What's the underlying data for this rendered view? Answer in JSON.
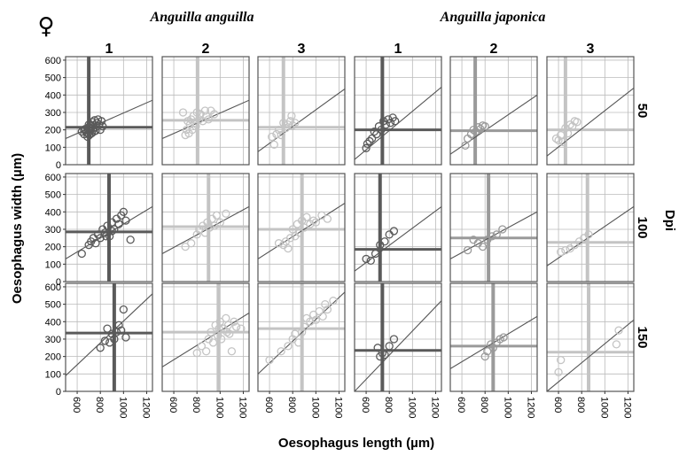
{
  "sex_symbol": "♀",
  "species": [
    "Anguilla anguilla",
    "Anguilla japonica"
  ],
  "column_headers": [
    "1",
    "2",
    "3",
    "1",
    "2",
    "3"
  ],
  "row_strip_title": "Dpi",
  "row_headers": [
    "50",
    "100",
    "150"
  ],
  "x_axis_label": "Oesophagus length (µm)",
  "y_axis_label": "Oesophagus width (µm)",
  "x_ticks": [
    "600",
    "800",
    "1000",
    "1200"
  ],
  "y_ticks": [
    "0",
    "100",
    "200",
    "300",
    "400",
    "500",
    "600"
  ],
  "colors": {
    "dark": "#5a5a5a",
    "mid": "#9a9a9a",
    "light": "#c4c4c4",
    "grid": "#bbbbbb",
    "border": "#555555"
  },
  "chart_data": {
    "type": "scatter",
    "facet_layout": "3 rows (Dpi) x 6 columns (species x group)",
    "xlim": [
      500,
      1250
    ],
    "ylim": [
      0,
      620
    ],
    "grid": true,
    "panels": [
      {
        "species": "Anguilla anguilla",
        "col": "1",
        "dpi": "50",
        "tone": "dark",
        "mean_x": 700,
        "mean_y": 215,
        "fit": {
          "y_at_500": 150,
          "y_at_1250": 370
        },
        "points": [
          [
            640,
            190
          ],
          [
            660,
            175
          ],
          [
            670,
            205
          ],
          [
            680,
            185
          ],
          [
            690,
            160
          ],
          [
            695,
            200
          ],
          [
            700,
            215
          ],
          [
            705,
            170
          ],
          [
            710,
            190
          ],
          [
            715,
            230
          ],
          [
            720,
            210
          ],
          [
            725,
            180
          ],
          [
            730,
            245
          ],
          [
            735,
            200
          ],
          [
            740,
            225
          ],
          [
            745,
            190
          ],
          [
            750,
            255
          ],
          [
            760,
            215
          ],
          [
            770,
            240
          ],
          [
            780,
            260
          ],
          [
            790,
            230
          ],
          [
            800,
            200
          ],
          [
            810,
            250
          ],
          [
            820,
            220
          ],
          [
            660,
            200
          ],
          [
            700,
            230
          ],
          [
            760,
            195
          ]
        ]
      },
      {
        "species": "Anguilla anguilla",
        "col": "2",
        "dpi": "50",
        "tone": "light",
        "mean_x": 805,
        "mean_y": 255,
        "fit": {
          "y_at_500": 150,
          "y_at_1250": 370
        },
        "points": [
          [
            680,
            300
          ],
          [
            700,
            170
          ],
          [
            710,
            200
          ],
          [
            720,
            250
          ],
          [
            730,
            180
          ],
          [
            740,
            230
          ],
          [
            750,
            260
          ],
          [
            760,
            200
          ],
          [
            770,
            280
          ],
          [
            780,
            240
          ],
          [
            790,
            220
          ],
          [
            800,
            300
          ],
          [
            820,
            260
          ],
          [
            830,
            290
          ],
          [
            850,
            250
          ],
          [
            870,
            310
          ],
          [
            880,
            280
          ],
          [
            900,
            260
          ],
          [
            920,
            310
          ],
          [
            950,
            290
          ]
        ]
      },
      {
        "species": "Anguilla anguilla",
        "col": "3",
        "dpi": "50",
        "tone": "light",
        "mean_x": 720,
        "mean_y": 215,
        "fit": {
          "y_at_500": 75,
          "y_at_1250": 435
        },
        "points": [
          [
            620,
            160
          ],
          [
            640,
            115
          ],
          [
            660,
            175
          ],
          [
            680,
            200
          ],
          [
            700,
            170
          ],
          [
            720,
            240
          ],
          [
            740,
            210
          ],
          [
            760,
            230
          ],
          [
            780,
            250
          ],
          [
            790,
            280
          ],
          [
            800,
            225
          ],
          [
            820,
            240
          ]
        ]
      },
      {
        "species": "Anguilla japonica",
        "col": "1",
        "dpi": "50",
        "tone": "dark",
        "mean_x": 740,
        "mean_y": 200,
        "fit": {
          "y_at_500": 30,
          "y_at_1250": 445
        },
        "points": [
          [
            600,
            95
          ],
          [
            610,
            120
          ],
          [
            630,
            135
          ],
          [
            650,
            150
          ],
          [
            670,
            190
          ],
          [
            690,
            175
          ],
          [
            710,
            220
          ],
          [
            730,
            200
          ],
          [
            750,
            250
          ],
          [
            770,
            230
          ],
          [
            790,
            260
          ],
          [
            810,
            240
          ],
          [
            830,
            270
          ],
          [
            850,
            250
          ]
        ]
      },
      {
        "species": "Anguilla japonica",
        "col": "2",
        "dpi": "50",
        "tone": "mid",
        "mean_x": 715,
        "mean_y": 195,
        "fit": {
          "y_at_500": 60,
          "y_at_1250": 400
        },
        "points": [
          [
            630,
            110
          ],
          [
            650,
            150
          ],
          [
            680,
            175
          ],
          [
            700,
            200
          ],
          [
            720,
            190
          ],
          [
            740,
            215
          ],
          [
            760,
            205
          ],
          [
            780,
            225
          ],
          [
            800,
            220
          ]
        ]
      },
      {
        "species": "Anguilla japonica",
        "col": "3",
        "dpi": "50",
        "tone": "light",
        "mean_x": 660,
        "mean_y": 200,
        "fit": {
          "y_at_500": 50,
          "y_at_1250": 440
        },
        "points": [
          [
            580,
            150
          ],
          [
            600,
            140
          ],
          [
            620,
            170
          ],
          [
            640,
            130
          ],
          [
            660,
            210
          ],
          [
            680,
            180
          ],
          [
            700,
            230
          ],
          [
            720,
            220
          ],
          [
            740,
            250
          ],
          [
            760,
            245
          ]
        ]
      },
      {
        "species": "Anguilla anguilla",
        "col": "1",
        "dpi": "100",
        "tone": "dark",
        "mean_x": 875,
        "mean_y": 285,
        "fit": {
          "y_at_500": 130,
          "y_at_1250": 430
        },
        "points": [
          [
            640,
            160
          ],
          [
            700,
            210
          ],
          [
            720,
            230
          ],
          [
            740,
            250
          ],
          [
            760,
            220
          ],
          [
            780,
            270
          ],
          [
            800,
            250
          ],
          [
            820,
            300
          ],
          [
            840,
            280
          ],
          [
            860,
            320
          ],
          [
            880,
            260
          ],
          [
            900,
            340
          ],
          [
            920,
            300
          ],
          [
            940,
            360
          ],
          [
            960,
            330
          ],
          [
            980,
            380
          ],
          [
            1000,
            400
          ],
          [
            1020,
            350
          ],
          [
            1060,
            240
          ],
          [
            900,
            290
          ],
          [
            850,
            260
          ]
        ]
      },
      {
        "species": "Anguilla anguilla",
        "col": "2",
        "dpi": "100",
        "tone": "light",
        "mean_x": 900,
        "mean_y": 315,
        "fit": {
          "y_at_500": 160,
          "y_at_1250": 430
        },
        "points": [
          [
            700,
            200
          ],
          [
            750,
            220
          ],
          [
            800,
            270
          ],
          [
            820,
            300
          ],
          [
            850,
            320
          ],
          [
            870,
            280
          ],
          [
            890,
            340
          ],
          [
            910,
            310
          ],
          [
            930,
            360
          ],
          [
            950,
            320
          ],
          [
            970,
            380
          ],
          [
            1000,
            340
          ],
          [
            1050,
            390
          ]
        ]
      },
      {
        "species": "Anguilla anguilla",
        "col": "3",
        "dpi": "100",
        "tone": "light",
        "mean_x": 880,
        "mean_y": 300,
        "fit": {
          "y_at_500": 130,
          "y_at_1250": 450
        },
        "points": [
          [
            680,
            220
          ],
          [
            720,
            210
          ],
          [
            740,
            230
          ],
          [
            760,
            190
          ],
          [
            780,
            250
          ],
          [
            800,
            300
          ],
          [
            820,
            260
          ],
          [
            840,
            330
          ],
          [
            860,
            280
          ],
          [
            880,
            350
          ],
          [
            900,
            310
          ],
          [
            920,
            370
          ],
          [
            950,
            330
          ],
          [
            980,
            350
          ],
          [
            1000,
            340
          ],
          [
            1050,
            380
          ],
          [
            1100,
            360
          ]
        ]
      },
      {
        "species": "Anguilla japonica",
        "col": "1",
        "dpi": "100",
        "tone": "dark",
        "mean_x": 720,
        "mean_y": 185,
        "fit": {
          "y_at_500": 60,
          "y_at_1250": 430
        },
        "points": [
          [
            600,
            130
          ],
          [
            640,
            120
          ],
          [
            680,
            160
          ],
          [
            720,
            210
          ],
          [
            760,
            230
          ],
          [
            800,
            270
          ],
          [
            840,
            290
          ]
        ]
      },
      {
        "species": "Anguilla japonica",
        "col": "2",
        "dpi": "100",
        "tone": "mid",
        "mean_x": 830,
        "mean_y": 250,
        "fit": {
          "y_at_500": 130,
          "y_at_1250": 400
        },
        "points": [
          [
            650,
            180
          ],
          [
            700,
            240
          ],
          [
            740,
            220
          ],
          [
            780,
            200
          ],
          [
            820,
            240
          ],
          [
            860,
            260
          ],
          [
            900,
            270
          ],
          [
            950,
            300
          ]
        ]
      },
      {
        "species": "Anguilla japonica",
        "col": "3",
        "dpi": "100",
        "tone": "light",
        "mean_x": 850,
        "mean_y": 225,
        "fit": {
          "y_at_500": 90,
          "y_at_1250": 430
        },
        "points": [
          [
            620,
            170
          ],
          [
            660,
            180
          ],
          [
            700,
            190
          ],
          [
            740,
            210
          ],
          [
            780,
            230
          ],
          [
            820,
            250
          ],
          [
            860,
            270
          ]
        ]
      },
      {
        "species": "Anguilla anguilla",
        "col": "1",
        "dpi": "150",
        "tone": "dark",
        "mean_x": 920,
        "mean_y": 335,
        "fit": {
          "y_at_500": 90,
          "y_at_1250": 560
        },
        "points": [
          [
            800,
            250
          ],
          [
            840,
            290
          ],
          [
            860,
            360
          ],
          [
            880,
            280
          ],
          [
            900,
            330
          ],
          [
            920,
            300
          ],
          [
            940,
            340
          ],
          [
            960,
            380
          ],
          [
            980,
            350
          ],
          [
            1000,
            470
          ],
          [
            1020,
            310
          ]
        ]
      },
      {
        "species": "Anguilla anguilla",
        "col": "2",
        "dpi": "150",
        "tone": "light",
        "mean_x": 985,
        "mean_y": 340,
        "fit": {
          "y_at_500": 140,
          "y_at_1250": 450
        },
        "points": [
          [
            800,
            220
          ],
          [
            840,
            260
          ],
          [
            880,
            230
          ],
          [
            900,
            300
          ],
          [
            920,
            340
          ],
          [
            940,
            280
          ],
          [
            960,
            380
          ],
          [
            980,
            320
          ],
          [
            1000,
            400
          ],
          [
            1010,
            300
          ],
          [
            1030,
            360
          ],
          [
            1050,
            420
          ],
          [
            1070,
            380
          ],
          [
            1080,
            330
          ],
          [
            1100,
            230
          ],
          [
            1120,
            400
          ],
          [
            1140,
            370
          ],
          [
            1180,
            360
          ],
          [
            1060,
            340
          ],
          [
            990,
            360
          ]
        ]
      },
      {
        "species": "Anguilla anguilla",
        "col": "3",
        "dpi": "150",
        "tone": "light",
        "mean_x": 880,
        "mean_y": 360,
        "fit": {
          "y_at_500": 100,
          "y_at_1250": 570
        },
        "points": [
          [
            600,
            180
          ],
          [
            700,
            230
          ],
          [
            760,
            260
          ],
          [
            800,
            300
          ],
          [
            820,
            330
          ],
          [
            850,
            280
          ],
          [
            880,
            340
          ],
          [
            900,
            370
          ],
          [
            920,
            420
          ],
          [
            950,
            400
          ],
          [
            980,
            440
          ],
          [
            1000,
            410
          ],
          [
            1030,
            460
          ],
          [
            1060,
            430
          ],
          [
            1080,
            500
          ],
          [
            1100,
            470
          ],
          [
            1150,
            520
          ]
        ]
      },
      {
        "species": "Anguilla japonica",
        "col": "1",
        "dpi": "150",
        "tone": "dark",
        "mean_x": 740,
        "mean_y": 235,
        "fit": {
          "y_at_500": 0,
          "y_at_1250": 520
        },
        "points": [
          [
            700,
            250
          ],
          [
            720,
            200
          ],
          [
            740,
            220
          ],
          [
            760,
            210
          ],
          [
            800,
            260
          ],
          [
            840,
            300
          ]
        ]
      },
      {
        "species": "Anguilla japonica",
        "col": "2",
        "dpi": "150",
        "tone": "mid",
        "mean_x": 870,
        "mean_y": 260,
        "fit": {
          "y_at_500": 130,
          "y_at_1250": 430
        },
        "points": [
          [
            800,
            200
          ],
          [
            820,
            230
          ],
          [
            850,
            270
          ],
          [
            870,
            250
          ],
          [
            900,
            280
          ],
          [
            930,
            300
          ],
          [
            960,
            310
          ]
        ]
      },
      {
        "species": "Anguilla japonica",
        "col": "3",
        "dpi": "150",
        "tone": "light",
        "mean_x": 860,
        "mean_y": 225,
        "fit": {
          "y_at_500": 0,
          "y_at_1250": 410
        },
        "points": [
          [
            600,
            110
          ],
          [
            620,
            180
          ],
          [
            1100,
            270
          ],
          [
            1120,
            350
          ]
        ]
      }
    ]
  }
}
